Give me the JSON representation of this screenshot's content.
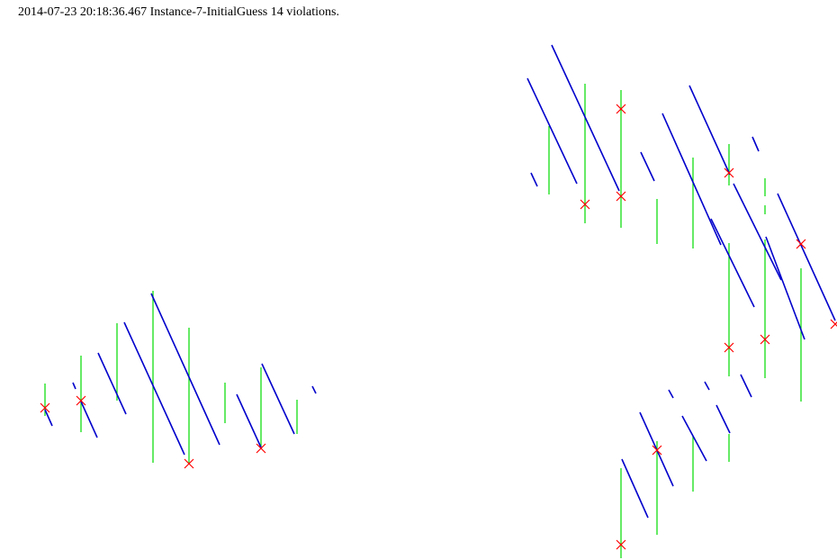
{
  "caption": "2014-07-23 20:18:36.467 Instance-7-InitialGuess 14 violations.",
  "colors": {
    "diagonal": "#0000cc",
    "vertical": "#00dd00",
    "violation": "#ff0000"
  }
}
